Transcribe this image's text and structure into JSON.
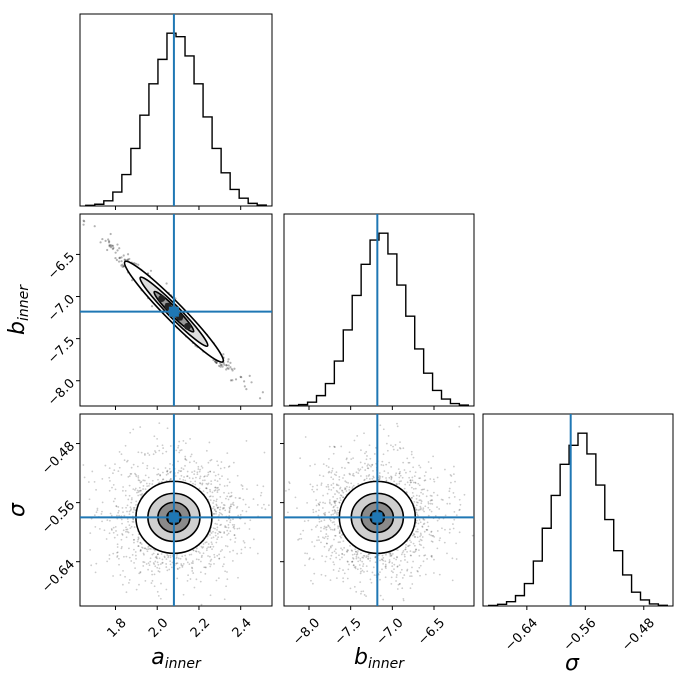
{
  "chart_data": {
    "type": "corner",
    "truth_color": "#1f77b4",
    "parameters": [
      {
        "symbol": "a",
        "subscript": "inner",
        "truth": 2.08,
        "range": [
          1.63,
          2.55
        ],
        "ticks": [
          "1.8",
          "2.0",
          "2.2",
          "2.4"
        ],
        "tick_values": [
          1.8,
          2.0,
          2.2,
          2.4
        ]
      },
      {
        "symbol": "b",
        "subscript": "inner",
        "truth": -7.18,
        "range": [
          -8.3,
          -6.02
        ],
        "ticks": [
          "−8.0",
          "−7.5",
          "−7.0",
          "−6.5"
        ],
        "tick_values": [
          -8.0,
          -7.5,
          -7.0,
          -6.5
        ]
      },
      {
        "symbol": "σ",
        "subscript": "",
        "truth": -0.58,
        "range": [
          -0.7,
          -0.44
        ],
        "ticks": [
          "−0.64",
          "−0.56",
          "−0.48"
        ],
        "tick_values": [
          -0.64,
          -0.56,
          -0.48
        ]
      }
    ],
    "histograms": [
      [
        4,
        10,
        30,
        80,
        180,
        330,
        520,
        700,
        840,
        990,
        970,
        860,
        700,
        510,
        330,
        190,
        95,
        45,
        15,
        5
      ],
      [
        3,
        8,
        22,
        60,
        130,
        260,
        440,
        640,
        820,
        960,
        1000,
        880,
        700,
        520,
        330,
        190,
        90,
        40,
        14,
        5
      ],
      [
        3,
        10,
        25,
        60,
        130,
        260,
        450,
        640,
        820,
        930,
        1000,
        880,
        700,
        500,
        320,
        180,
        80,
        35,
        12,
        4
      ]
    ],
    "pairs": [
      {
        "row": 1,
        "col": 0,
        "kind": "diagonal-band",
        "correlation": -0.99
      },
      {
        "row": 2,
        "col": 0,
        "kind": "round-blob",
        "correlation": 0.0
      },
      {
        "row": 2,
        "col": 1,
        "kind": "round-blob",
        "correlation": 0.0
      }
    ]
  }
}
